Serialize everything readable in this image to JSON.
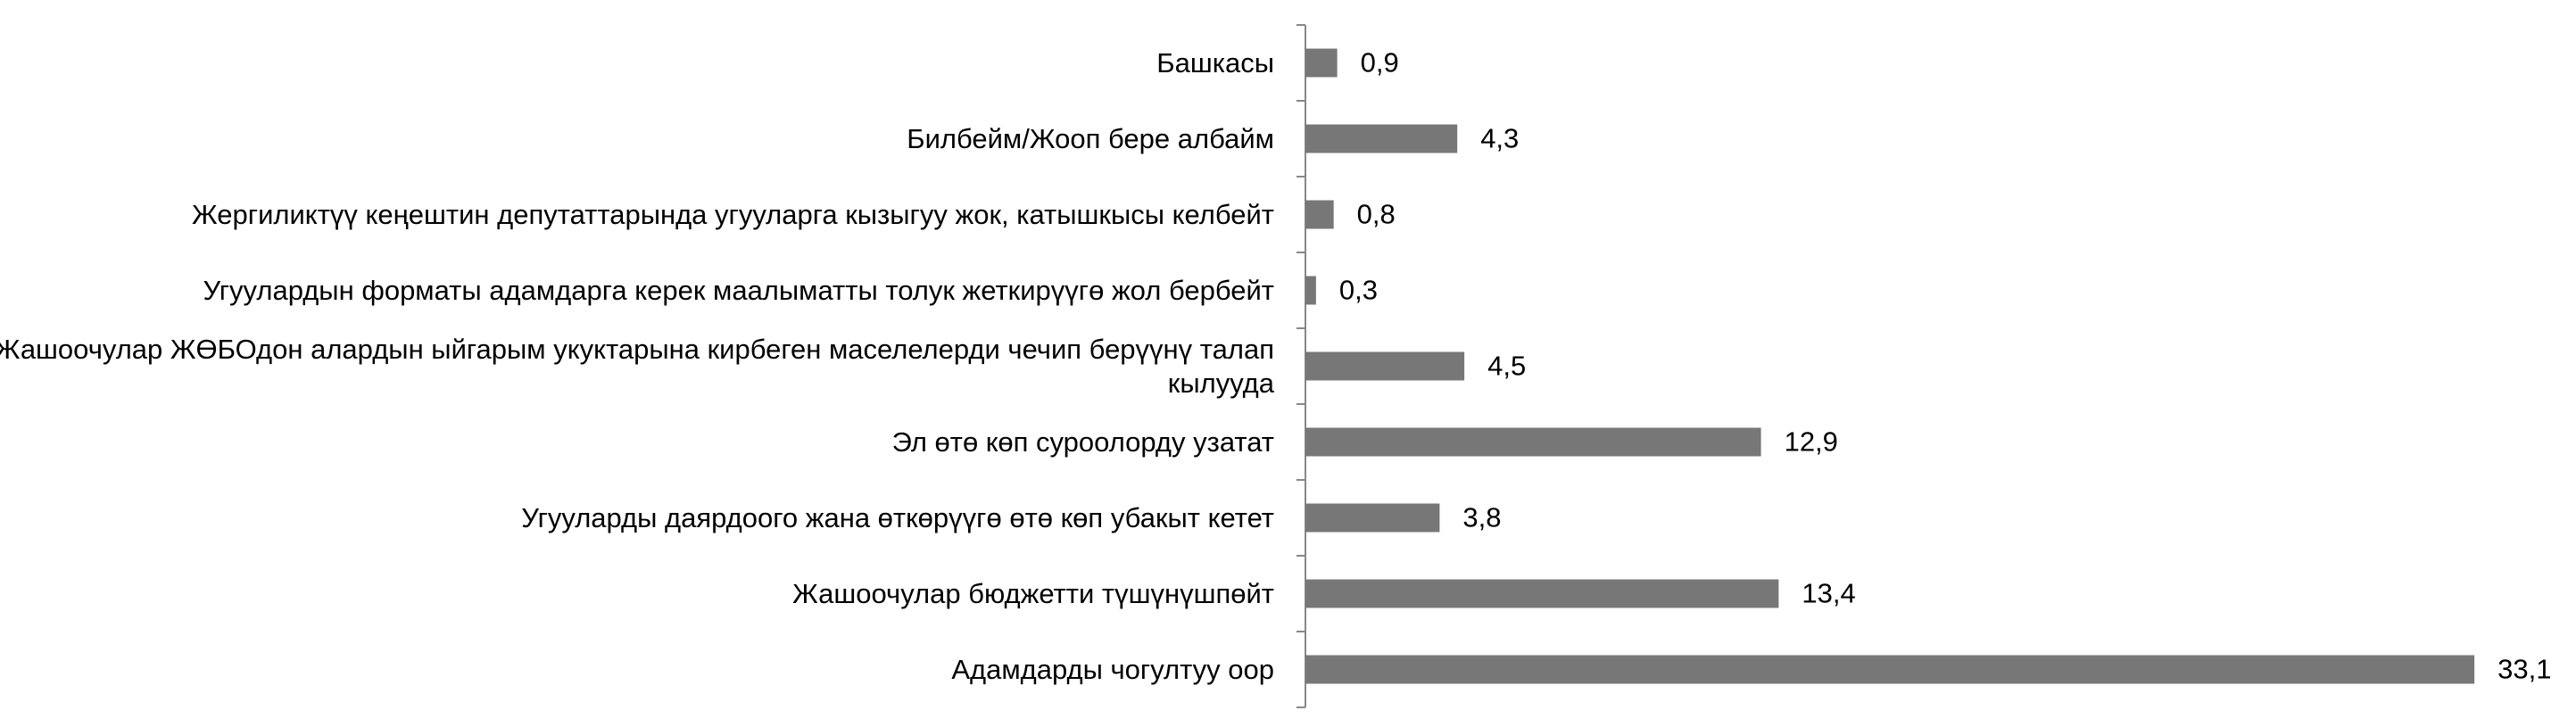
{
  "chart_data": {
    "type": "barh",
    "categories": [
      "Башкасы",
      "Билбейм/Жооп бере албайм",
      "Жергиликтүү кеңештин депутаттарында угууларга кызыгуу жок, катышкысы келбейт",
      "Угуулардын форматы адамдарга керек маалыматты толук жеткирүүгө жол бербейт",
      "Жашоочулар ЖӨБОдон алардын ыйгарым укуктарына кирбеген маселелерди чечип берүүнү талап кылууда",
      "Эл өтө көп суроолорду узатат",
      "Угууларды даярдоого жана өткөрүүгө өтө көп убакыт кетет",
      "Жашоочулар бюджетти түшүнүшпөйт",
      "Адамдарды чогултуу оор"
    ],
    "values": [
      0.9,
      4.3,
      0.8,
      0.3,
      4.5,
      12.9,
      3.8,
      13.4,
      33.1
    ],
    "value_labels": [
      "0,9",
      "4,3",
      "0,8",
      "0,3",
      "4,5",
      "12,9",
      "3,8",
      "13,4",
      "33,1"
    ],
    "color": "#777777",
    "xlim": [
      0,
      35
    ]
  }
}
